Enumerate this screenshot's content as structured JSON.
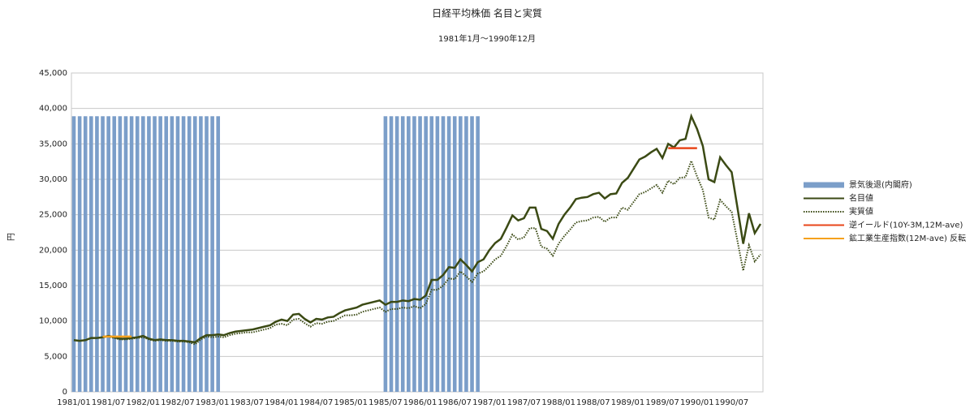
{
  "chart_data": {
    "type": "line",
    "title": "日経平均株価  名目と実質",
    "subtitle": "1981年1月～1990年12月",
    "y_label": "円",
    "categories": [
      "1981/01",
      null,
      null,
      null,
      null,
      null,
      "1981/07",
      null,
      null,
      null,
      null,
      null,
      "1982/01",
      null,
      null,
      null,
      null,
      null,
      "1982/07",
      null,
      null,
      null,
      null,
      null,
      "1983/01",
      null,
      null,
      null,
      null,
      null,
      "1983/07",
      null,
      null,
      null,
      null,
      null,
      "1984/01",
      null,
      null,
      null,
      null,
      null,
      "1984/07",
      null,
      null,
      null,
      null,
      null,
      "1985/01",
      null,
      null,
      null,
      null,
      null,
      "1985/07",
      null,
      null,
      null,
      null,
      null,
      "1986/01",
      null,
      null,
      null,
      null,
      null,
      "1986/07",
      null,
      null,
      null,
      null,
      null,
      "1987/01",
      null,
      null,
      null,
      null,
      null,
      "1987/07",
      null,
      null,
      null,
      null,
      null,
      "1988/01",
      null,
      null,
      null,
      null,
      null,
      "1988/07",
      null,
      null,
      null,
      null,
      null,
      "1989/01",
      null,
      null,
      null,
      null,
      null,
      "1989/07",
      null,
      null,
      null,
      null,
      null,
      "1990/01",
      null,
      null,
      null,
      null,
      null,
      "1990/07",
      null,
      null,
      null,
      null,
      null
    ],
    "ylim": [
      0,
      45000
    ],
    "yticks": [
      0,
      {
        "value": 5000,
        "label": "5,000"
      },
      {
        "value": 10000,
        "label": "10,000"
      },
      {
        "value": 15000,
        "label": "15,000"
      },
      {
        "value": 20000,
        "label": "20,000"
      },
      {
        "value": 25000,
        "label": "25,000"
      },
      {
        "value": 30000,
        "label": "30,000"
      },
      {
        "value": 35000,
        "label": "35,000"
      },
      {
        "value": 40000,
        "label": "40,000"
      },
      {
        "value": 45000,
        "label": "45,000"
      }
    ],
    "grid": true,
    "legend": "right",
    "series": [
      {
        "name": "景気後退(内閣府)",
        "color": "#7b9ec9",
        "style": "bar",
        "values": [
          38900,
          38900,
          38900,
          38900,
          38900,
          38900,
          38900,
          38900,
          38900,
          38900,
          38900,
          38900,
          38900,
          38900,
          38900,
          38900,
          38900,
          38900,
          38900,
          38900,
          38900,
          38900,
          38900,
          38900,
          38900,
          38900,
          null,
          null,
          null,
          null,
          null,
          null,
          null,
          null,
          null,
          null,
          null,
          null,
          null,
          null,
          null,
          null,
          null,
          null,
          null,
          null,
          null,
          null,
          null,
          null,
          null,
          null,
          null,
          null,
          38900,
          38900,
          38900,
          38900,
          38900,
          38900,
          38900,
          38900,
          38900,
          38900,
          38900,
          38900,
          38900,
          38900,
          38900,
          38900,
          38900,
          null,
          null,
          null,
          null,
          null,
          null,
          null,
          null,
          null,
          null,
          null,
          null,
          null,
          null,
          null,
          null,
          null,
          null,
          null,
          null,
          null,
          null,
          null,
          null,
          null,
          null,
          null,
          null,
          null,
          null,
          null,
          null,
          null,
          null,
          null,
          null,
          null,
          null,
          null,
          null,
          null,
          null,
          null,
          null,
          null,
          null,
          null,
          null,
          null
        ]
      },
      {
        "name": "名目値",
        "color": "#3b4a14",
        "style": "solid",
        "values": [
          7300,
          7200,
          7300,
          7600,
          7600,
          7700,
          7900,
          7700,
          7500,
          7500,
          7600,
          7700,
          7900,
          7500,
          7300,
          7400,
          7300,
          7300,
          7200,
          7200,
          7100,
          7000,
          7600,
          8000,
          8000,
          8100,
          8000,
          8300,
          8500,
          8600,
          8700,
          8800,
          9000,
          9200,
          9400,
          9900,
          10200,
          10000,
          10900,
          11000,
          10300,
          9800,
          10300,
          10200,
          10500,
          10600,
          11100,
          11500,
          11700,
          11900,
          12300,
          12500,
          12700,
          12900,
          12300,
          12700,
          12700,
          12900,
          12800,
          13100,
          13000,
          13600,
          15800,
          15800,
          16500,
          17600,
          17500,
          18700,
          17900,
          17000,
          18300,
          18700,
          20000,
          21000,
          21600,
          23200,
          24900,
          24200,
          24500,
          26000,
          26000,
          23000,
          22700,
          21600,
          23700,
          25000,
          26000,
          27200,
          27400,
          27500,
          27900,
          28100,
          27300,
          27900,
          28000,
          29500,
          30200,
          31500,
          32800,
          33200,
          33800,
          34300,
          33000,
          35000,
          34500,
          35500,
          35700,
          38900,
          37100,
          34700,
          30000,
          29600,
          33100,
          32000,
          31000,
          26000,
          20900,
          25200,
          22400,
          23700
        ]
      },
      {
        "name": "実質値",
        "color": "#3b4a14",
        "style": "dotted",
        "values": [
          7300,
          7200,
          7300,
          7600,
          7600,
          7700,
          7800,
          7600,
          7400,
          7400,
          7500,
          7600,
          7700,
          7400,
          7200,
          7300,
          7200,
          7200,
          7100,
          7100,
          7000,
          6700,
          7400,
          7800,
          7700,
          7800,
          7700,
          8000,
          8200,
          8300,
          8400,
          8400,
          8600,
          8800,
          9000,
          9500,
          9600,
          9400,
          10200,
          10300,
          9700,
          9200,
          9700,
          9600,
          9900,
          10000,
          10400,
          10800,
          10800,
          10900,
          11300,
          11500,
          11700,
          11900,
          11300,
          11700,
          11700,
          11900,
          11800,
          12100,
          11800,
          12400,
          14400,
          14400,
          15000,
          16000,
          15900,
          17000,
          16300,
          15500,
          16700,
          17000,
          17800,
          18700,
          19200,
          20600,
          22200,
          21500,
          21800,
          23100,
          23100,
          20500,
          20200,
          19200,
          20900,
          22000,
          22900,
          23900,
          24100,
          24200,
          24600,
          24700,
          24000,
          24600,
          24600,
          26000,
          25700,
          26800,
          27900,
          28200,
          28700,
          29200,
          28100,
          29800,
          29300,
          30200,
          30300,
          32600,
          30400,
          28500,
          24600,
          24300,
          27100,
          26200,
          25400,
          21300,
          17100,
          20700,
          18400,
          19400
        ]
      },
      {
        "name": "逆イールド(10Y-3M,12M-ave)",
        "color": "#e8461a",
        "style": "solid",
        "values": [
          null,
          null,
          null,
          null,
          null,
          null,
          null,
          null,
          null,
          null,
          null,
          null,
          null,
          null,
          null,
          null,
          null,
          null,
          null,
          null,
          null,
          null,
          null,
          null,
          null,
          null,
          null,
          null,
          null,
          null,
          null,
          null,
          null,
          null,
          null,
          null,
          null,
          null,
          null,
          null,
          null,
          null,
          null,
          null,
          null,
          null,
          null,
          null,
          null,
          null,
          null,
          null,
          null,
          null,
          null,
          null,
          null,
          null,
          null,
          null,
          null,
          null,
          null,
          null,
          null,
          null,
          null,
          null,
          null,
          null,
          null,
          null,
          null,
          null,
          null,
          null,
          null,
          null,
          null,
          null,
          null,
          null,
          null,
          null,
          null,
          null,
          null,
          null,
          null,
          null,
          null,
          null,
          null,
          null,
          null,
          null,
          null,
          null,
          null,
          null,
          null,
          null,
          null,
          34400,
          34400,
          34400,
          34400,
          34400,
          34400,
          null,
          null,
          null,
          null,
          null,
          null,
          null,
          null,
          null,
          null,
          null
        ]
      },
      {
        "name": "鉱工業生産指数(12M-ave) 反転",
        "color": "#f5a11c",
        "style": "solid",
        "values": [
          null,
          null,
          null,
          null,
          null,
          7800,
          7800,
          7800,
          7800,
          7800,
          7800,
          null,
          null,
          null,
          null,
          null,
          null,
          null,
          null,
          null,
          null,
          null,
          null,
          null,
          null,
          null,
          null,
          null,
          null,
          null,
          null,
          null,
          null,
          null,
          null,
          null,
          null,
          null,
          null,
          null,
          null,
          null,
          null,
          null,
          null,
          null,
          null,
          null,
          null,
          null,
          null,
          null,
          null,
          null,
          null,
          null,
          null,
          null,
          null,
          null,
          null,
          null,
          null,
          null,
          null,
          null,
          null,
          null,
          null,
          null,
          null,
          null,
          null,
          null,
          null,
          null,
          null,
          null,
          null,
          null,
          null,
          null,
          null,
          null,
          null,
          null,
          null,
          null,
          null,
          null,
          null,
          null,
          null,
          null,
          null,
          null,
          null,
          null,
          null,
          null,
          null,
          null,
          null,
          null,
          null,
          null,
          null,
          null,
          null,
          null,
          null,
          null,
          null,
          null,
          null,
          null,
          null,
          null,
          null,
          null
        ]
      }
    ]
  }
}
